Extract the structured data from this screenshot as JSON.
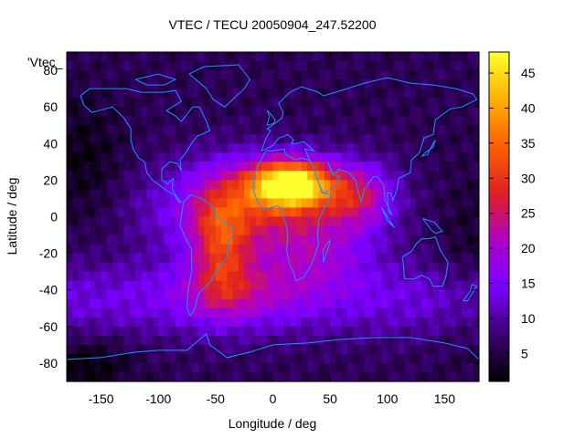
{
  "chart_data": {
    "type": "heatmap",
    "title": "VTEC / TECU 20050904_247.52200",
    "xlabel": "Longitude / deg",
    "ylabel": "Latitude / deg",
    "series_label": "'Vtec_",
    "xlim": [
      -180,
      180
    ],
    "ylim": [
      -90,
      90
    ],
    "x_ticks": [
      -150,
      -100,
      -50,
      0,
      50,
      100,
      150
    ],
    "y_ticks": [
      -80,
      -60,
      -40,
      -20,
      0,
      20,
      40,
      60,
      80
    ],
    "colorbar": {
      "range": [
        1,
        48
      ],
      "ticks": [
        5,
        10,
        15,
        20,
        25,
        30,
        35,
        40,
        45
      ],
      "colormap": [
        "#000000",
        "#3a0070",
        "#7a00ff",
        "#b000c8",
        "#e02020",
        "#ff6000",
        "#ffb000",
        "#ffff30"
      ]
    },
    "features": [
      {
        "name": "african-peak",
        "lon": 15,
        "lat": 18,
        "value": 47
      },
      {
        "name": "south-america-crest",
        "lon": -45,
        "lat": -15,
        "value": 28
      },
      {
        "name": "indian-ocean-crest",
        "lon": 75,
        "lat": 12,
        "value": 30
      },
      {
        "name": "southern-ring",
        "lon": -30,
        "lat": -50,
        "value": 12
      },
      {
        "name": "night-minimum",
        "lon": -160,
        "lat": -85,
        "value": 2
      }
    ],
    "overlay": "coastlines",
    "overlay_color": "#1e90ff"
  }
}
